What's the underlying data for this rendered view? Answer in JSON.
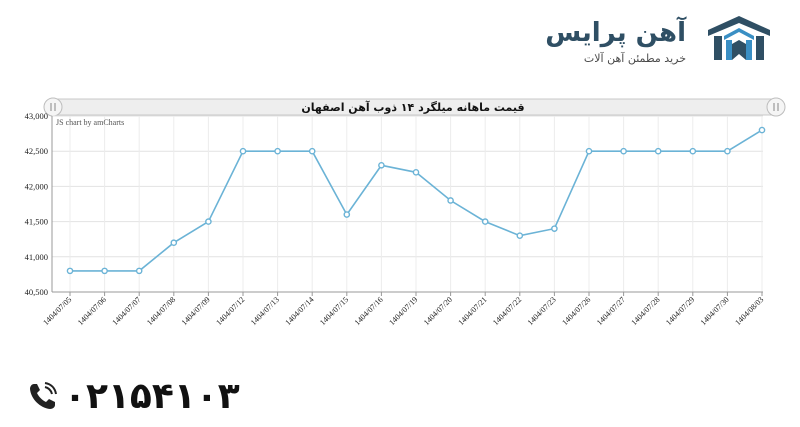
{
  "brand": {
    "name": "آهن پرایس",
    "tagline": "خرید مطمئن آهن آلات"
  },
  "phone": {
    "number": "۰۲۱۵۴۱۰۳",
    "icon": "phone-icon"
  },
  "chart_data": {
    "type": "line",
    "title": "قیمت ماهانه میلگرد ۱۴ ذوب آهن اصفهان",
    "credit": "JS chart by amCharts",
    "categories": [
      "1404/07/05",
      "1404/07/06",
      "1404/07/07",
      "1404/07/08",
      "1404/07/09",
      "1404/07/12",
      "1404/07/13",
      "1404/07/14",
      "1404/07/15",
      "1404/07/16",
      "1404/07/19",
      "1404/07/20",
      "1404/07/21",
      "1404/07/22",
      "1404/07/23",
      "1404/07/26",
      "1404/07/27",
      "1404/07/28",
      "1404/07/29",
      "1404/07/30",
      "1404/08/03"
    ],
    "values": [
      40800,
      40800,
      40800,
      41200,
      41500,
      42500,
      42500,
      42500,
      41600,
      42300,
      42200,
      41800,
      41500,
      41300,
      41400,
      42500,
      42500,
      42500,
      42500,
      42500,
      42800
    ],
    "ylim": [
      40500,
      43000
    ],
    "yticks": [
      40500,
      41000,
      41500,
      42000,
      42500,
      43000
    ],
    "ytick_labels": [
      "40,500",
      "41,000",
      "41,500",
      "42,000",
      "42,500",
      "43,000"
    ],
    "grid": true,
    "line_color": "#6bb3d6"
  }
}
